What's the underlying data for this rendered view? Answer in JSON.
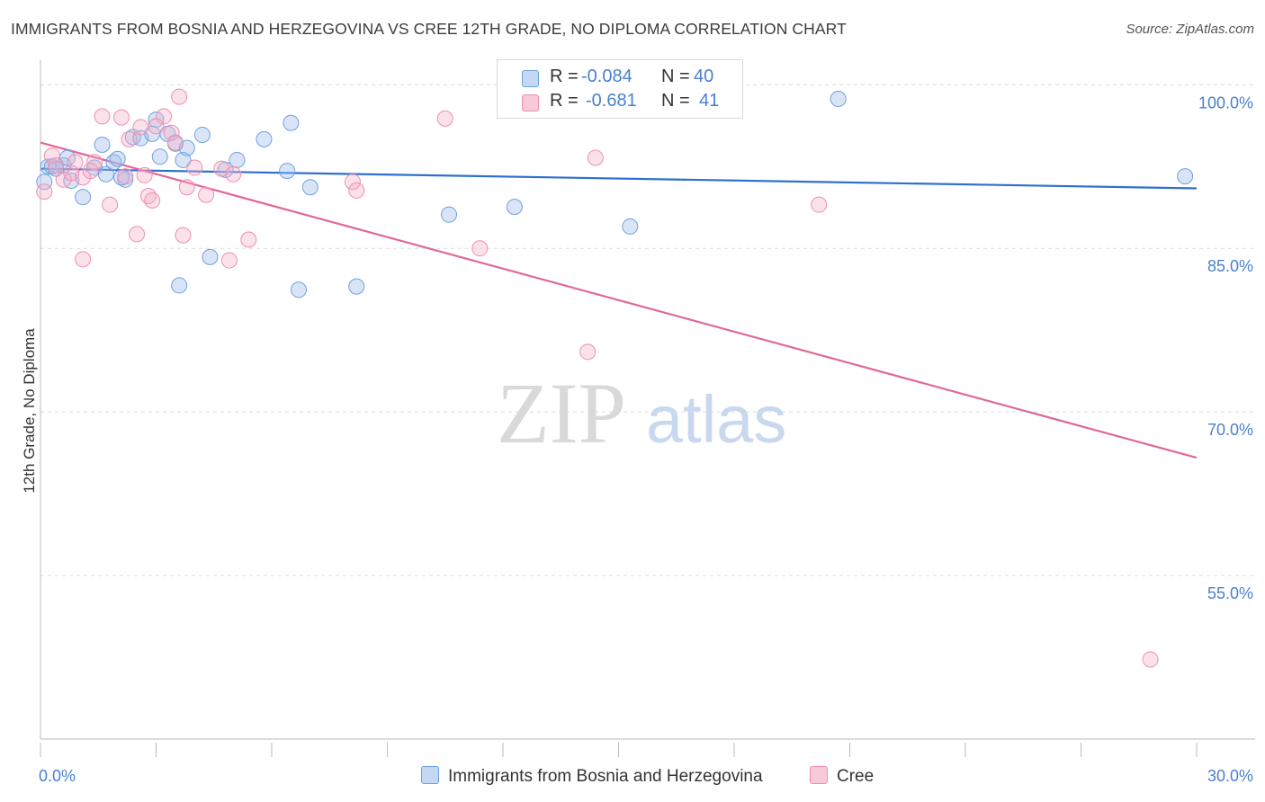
{
  "title": "IMMIGRANTS FROM BOSNIA AND HERZEGOVINA VS CREE 12TH GRADE, NO DIPLOMA CORRELATION CHART",
  "source": "Source: ZipAtlas.com",
  "watermark": {
    "zip": "ZIP",
    "atlas": "atlas"
  },
  "legend": {
    "rows": [
      {
        "r_label": "R =",
        "r_value": "-0.084",
        "n_label": "N =",
        "n_value": "40",
        "color": "#6fa0e0"
      },
      {
        "r_label": "R =",
        "r_value": "-0.681",
        "n_label": "N =",
        "n_value": "41",
        "color": "#ee8fb0"
      }
    ]
  },
  "chart_data": {
    "type": "scatter",
    "ylabel": "12th Grade, No Diploma",
    "xlabel": "",
    "xlim": [
      0,
      30
    ],
    "ylim": [
      40,
      102
    ],
    "y_ticks": [
      {
        "value": 100,
        "label": "100.0%"
      },
      {
        "value": 85,
        "label": "85.0%"
      },
      {
        "value": 70,
        "label": "70.0%"
      },
      {
        "value": 55,
        "label": "55.0%"
      }
    ],
    "x_tick_labels": [
      {
        "value": 0,
        "label": "0.0%"
      },
      {
        "value": 30,
        "label": "30.0%"
      }
    ],
    "x_minor_ticks": [
      0,
      3,
      6,
      9,
      12,
      15,
      18,
      21,
      24,
      27,
      30
    ],
    "grid": true,
    "legend_position": "top-center",
    "series": [
      {
        "name": "Immigrants from Bosnia and Herzegovina",
        "color": "#6fa0e0",
        "trend": {
          "x": [
            0,
            30
          ],
          "y": [
            92.3,
            90.5
          ]
        },
        "points": [
          [
            0.1,
            91.1
          ],
          [
            0.2,
            92.5
          ],
          [
            0.3,
            92.5
          ],
          [
            0.6,
            92.6
          ],
          [
            0.7,
            93.3
          ],
          [
            0.8,
            91.2
          ],
          [
            1.1,
            89.7
          ],
          [
            1.4,
            92.4
          ],
          [
            1.6,
            94.5
          ],
          [
            1.7,
            91.8
          ],
          [
            1.9,
            92.9
          ],
          [
            2.0,
            93.2
          ],
          [
            2.2,
            91.3
          ],
          [
            2.4,
            95.2
          ],
          [
            2.6,
            95.1
          ],
          [
            2.9,
            95.5
          ],
          [
            3.1,
            93.4
          ],
          [
            3.0,
            96.8
          ],
          [
            3.3,
            95.5
          ],
          [
            3.5,
            94.6
          ],
          [
            3.7,
            93.1
          ],
          [
            3.8,
            94.2
          ],
          [
            4.2,
            95.4
          ],
          [
            4.4,
            84.2
          ],
          [
            4.8,
            92.2
          ],
          [
            5.1,
            93.1
          ],
          [
            5.8,
            95.0
          ],
          [
            6.4,
            92.1
          ],
          [
            6.5,
            96.5
          ],
          [
            7.0,
            90.6
          ],
          [
            3.6,
            81.6
          ],
          [
            6.7,
            81.2
          ],
          [
            8.2,
            81.5
          ],
          [
            10.6,
            88.1
          ],
          [
            12.3,
            88.8
          ],
          [
            15.3,
            87.0
          ],
          [
            20.7,
            98.7
          ],
          [
            29.7,
            91.6
          ],
          [
            2.1,
            91.5
          ],
          [
            0.4,
            92.3
          ]
        ]
      },
      {
        "name": "Cree",
        "color": "#ee8fb0",
        "trend": {
          "x": [
            0,
            30
          ],
          "y": [
            94.7,
            65.8
          ]
        },
        "points": [
          [
            0.1,
            90.2
          ],
          [
            0.3,
            93.5
          ],
          [
            0.6,
            91.3
          ],
          [
            0.8,
            91.9
          ],
          [
            1.1,
            91.5
          ],
          [
            1.4,
            92.9
          ],
          [
            1.6,
            97.1
          ],
          [
            1.8,
            89.0
          ],
          [
            2.1,
            97.0
          ],
          [
            2.3,
            95.0
          ],
          [
            2.6,
            96.1
          ],
          [
            2.7,
            91.7
          ],
          [
            2.8,
            89.8
          ],
          [
            2.9,
            89.4
          ],
          [
            3.2,
            97.1
          ],
          [
            3.4,
            95.6
          ],
          [
            3.5,
            94.7
          ],
          [
            3.6,
            98.9
          ],
          [
            3.7,
            86.2
          ],
          [
            3.8,
            90.6
          ],
          [
            4.0,
            92.4
          ],
          [
            4.3,
            89.9
          ],
          [
            4.7,
            92.3
          ],
          [
            5.0,
            91.8
          ],
          [
            5.4,
            85.8
          ],
          [
            1.1,
            84.0
          ],
          [
            2.5,
            86.3
          ],
          [
            4.9,
            83.9
          ],
          [
            8.1,
            91.1
          ],
          [
            8.2,
            90.3
          ],
          [
            10.5,
            96.9
          ],
          [
            11.4,
            85.0
          ],
          [
            14.2,
            75.5
          ],
          [
            14.4,
            93.3
          ],
          [
            20.2,
            89.0
          ],
          [
            28.8,
            47.3
          ],
          [
            0.4,
            92.6
          ],
          [
            1.3,
            92.1
          ],
          [
            3.0,
            96.2
          ],
          [
            0.9,
            92.9
          ],
          [
            2.2,
            91.6
          ]
        ]
      }
    ]
  }
}
